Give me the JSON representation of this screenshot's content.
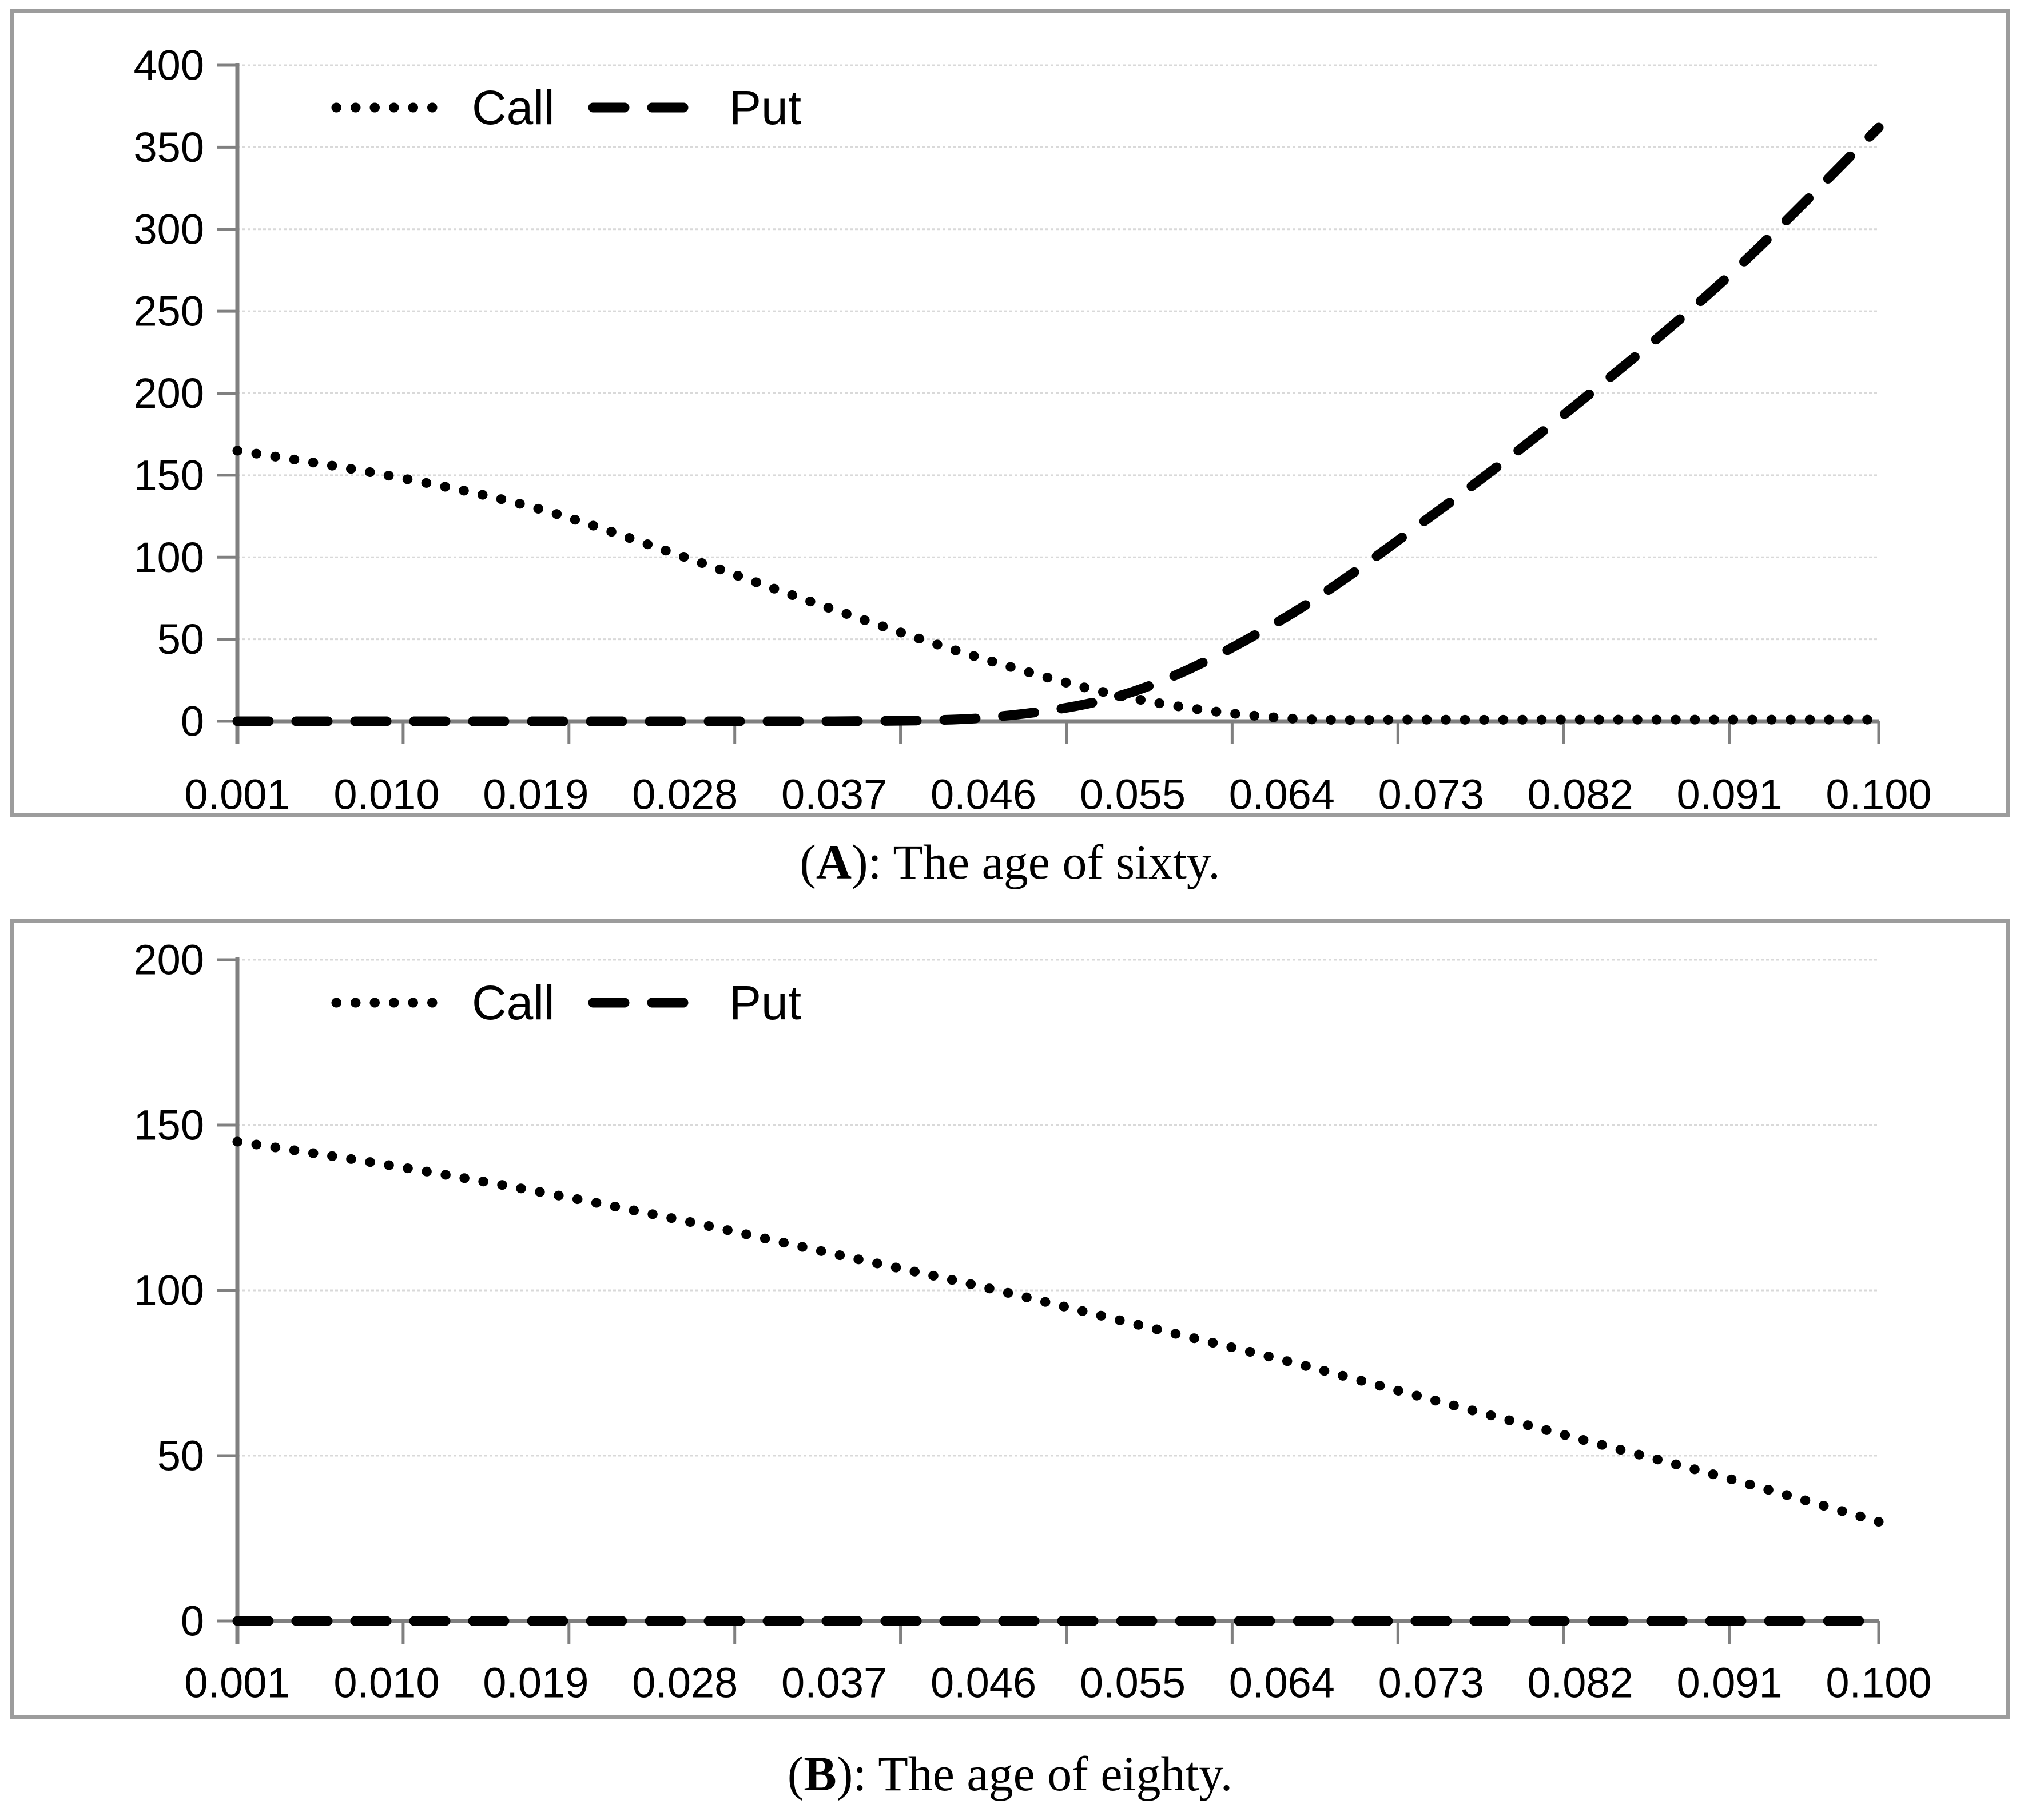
{
  "page": {
    "background": "#ffffff"
  },
  "colors": {
    "axis": "#808080",
    "gridlines": "#d9d9d9",
    "series": "#000000",
    "panel_border": "#9c9c9c",
    "text": "#000000"
  },
  "captions": [
    {
      "pre": "(",
      "label": "A",
      "post": "): The age of sixty."
    },
    {
      "pre": "(",
      "label": "B",
      "post": "): The age of eighty."
    }
  ],
  "chart_data": [
    {
      "type": "line",
      "panel": "A",
      "title": "(A): The age of sixty.",
      "xlabel": "",
      "ylabel": "",
      "x": [
        0.001,
        0.01,
        0.019,
        0.028,
        0.037,
        0.046,
        0.055,
        0.064,
        0.073,
        0.082,
        0.091,
        0.1
      ],
      "x_tick_labels": [
        "0.001",
        "0.010",
        "0.019",
        "0.028",
        "0.037",
        "0.046",
        "0.055",
        "0.064",
        "0.073",
        "0.082",
        "0.091",
        "0.100"
      ],
      "ylim": [
        0,
        400
      ],
      "y_ticks": [
        0,
        50,
        100,
        150,
        200,
        250,
        300,
        350,
        400
      ],
      "grid": true,
      "legend_position": "inside-top-left",
      "series": [
        {
          "name": "Call",
          "line_style": "dotted",
          "color": "#000000",
          "values": [
            165,
            150,
            130,
            100,
            68,
            38,
            14,
            2,
            1,
            1,
            1,
            1
          ]
        },
        {
          "name": "Put",
          "line_style": "dashed",
          "color": "#000000",
          "values": [
            0,
            0,
            0,
            0,
            0,
            2,
            18,
            62,
            125,
            195,
            272,
            362
          ]
        }
      ]
    },
    {
      "type": "line",
      "panel": "B",
      "title": "(B): The age of eighty.",
      "xlabel": "",
      "ylabel": "",
      "x": [
        0.001,
        0.01,
        0.019,
        0.028,
        0.037,
        0.046,
        0.055,
        0.064,
        0.073,
        0.082,
        0.091,
        0.1
      ],
      "x_tick_labels": [
        "0.001",
        "0.010",
        "0.019",
        "0.028",
        "0.037",
        "0.046",
        "0.055",
        "0.064",
        "0.073",
        "0.082",
        "0.091",
        "0.100"
      ],
      "ylim": [
        0,
        200
      ],
      "y_ticks": [
        0,
        50,
        100,
        150,
        200
      ],
      "grid": true,
      "legend_position": "inside-top-left",
      "series": [
        {
          "name": "Call",
          "line_style": "dotted",
          "color": "#000000",
          "values": [
            145,
            138,
            130,
            121,
            111,
            101,
            90,
            79,
            67,
            55,
            43,
            30
          ]
        },
        {
          "name": "Put",
          "line_style": "dashed",
          "color": "#000000",
          "values": [
            0,
            0,
            0,
            0,
            0,
            0,
            0,
            0,
            0,
            0,
            0,
            0
          ]
        }
      ]
    }
  ]
}
